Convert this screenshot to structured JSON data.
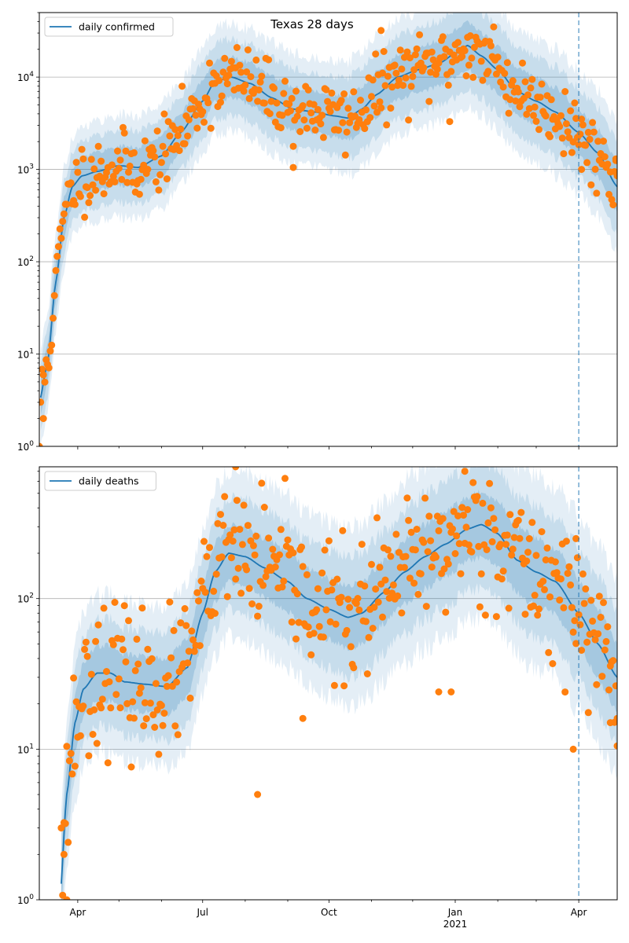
{
  "figure": {
    "title": "Texas 28 days"
  },
  "chart_data": [
    {
      "type": "line",
      "title": "Texas 28 days",
      "yscale": "log",
      "ylim": [
        1,
        50000
      ],
      "xlim": [
        "2020-03-04",
        "2021-04-29"
      ],
      "grid": "horizontal",
      "legend": "upper-left",
      "series_name": "daily confirmed",
      "line_color": "#1f77b4",
      "band_color": "#1f77b4",
      "point_color": "#ff7f0e",
      "vline": {
        "date": "2021-04-01",
        "color": "#1f77b4",
        "style": "dashed"
      },
      "ytick_labels": [
        "10^0",
        "10^1",
        "10^2",
        "10^3",
        "10^4"
      ],
      "xtick_labels": [],
      "median_curve": [
        [
          "2020-03-04",
          3
        ],
        [
          "2020-03-10",
          8
        ],
        [
          "2020-03-16",
          60
        ],
        [
          "2020-03-22",
          300
        ],
        [
          "2020-03-28",
          650
        ],
        [
          "2020-04-04",
          850
        ],
        [
          "2020-04-15",
          950
        ],
        [
          "2020-05-01",
          1100
        ],
        [
          "2020-05-15",
          1050
        ],
        [
          "2020-06-01",
          1400
        ],
        [
          "2020-06-15",
          2500
        ],
        [
          "2020-07-01",
          5500
        ],
        [
          "2020-07-10",
          9000
        ],
        [
          "2020-07-22",
          10000
        ],
        [
          "2020-08-05",
          8500
        ],
        [
          "2020-08-20",
          6000
        ],
        [
          "2020-09-05",
          4500
        ],
        [
          "2020-09-20",
          4200
        ],
        [
          "2020-10-05",
          3800
        ],
        [
          "2020-10-15",
          3600
        ],
        [
          "2020-10-25",
          4500
        ],
        [
          "2020-11-05",
          6500
        ],
        [
          "2020-11-20",
          10000
        ],
        [
          "2020-12-05",
          12000
        ],
        [
          "2020-12-20",
          14000
        ],
        [
          "2021-01-01",
          18000
        ],
        [
          "2021-01-10",
          22000
        ],
        [
          "2021-01-20",
          17000
        ],
        [
          "2021-02-01",
          12000
        ],
        [
          "2021-02-15",
          7000
        ],
        [
          "2021-03-01",
          5500
        ],
        [
          "2021-03-15",
          4200
        ],
        [
          "2021-04-01",
          2500
        ],
        [
          "2021-04-15",
          1500
        ],
        [
          "2021-04-29",
          650
        ]
      ],
      "band_factors": [
        1.6,
        2.4,
        3.4
      ],
      "observations": {
        "seed": 11,
        "sigma": 0.18,
        "outliers": [
          [
            "2020-03-04",
            1
          ],
          [
            "2020-03-07",
            2
          ],
          [
            "2020-11-08",
            32000
          ],
          [
            "2021-01-29",
            35000
          ],
          [
            "2020-09-05",
            1050
          ],
          [
            "2020-12-28",
            3300
          ],
          [
            "2021-04-03",
            1000
          ],
          [
            "2021-04-28",
            1300
          ]
        ]
      }
    },
    {
      "type": "line",
      "yscale": "log",
      "ylim": [
        1,
        750
      ],
      "xlim": [
        "2020-03-04",
        "2021-04-29"
      ],
      "grid": "horizontal",
      "legend": "upper-left",
      "series_name": "daily deaths",
      "line_color": "#1f77b4",
      "band_color": "#1f77b4",
      "point_color": "#ff7f0e",
      "vline": {
        "date": "2021-04-01",
        "color": "#1f77b4",
        "style": "dashed"
      },
      "ytick_labels": [
        "10^0",
        "10^1",
        "10^2"
      ],
      "xtick_labels": [
        "Apr",
        "Jul",
        "Oct",
        "Jan",
        "Apr"
      ],
      "xtick_dates": [
        "2020-04-01",
        "2020-07-01",
        "2020-10-01",
        "2021-01-01",
        "2021-04-01"
      ],
      "year_label": "2021",
      "year_label_date": "2021-01-01",
      "median_curve": [
        [
          "2020-03-19",
          1
        ],
        [
          "2020-03-24",
          5
        ],
        [
          "2020-03-30",
          15
        ],
        [
          "2020-04-05",
          25
        ],
        [
          "2020-04-15",
          32
        ],
        [
          "2020-04-25",
          32
        ],
        [
          "2020-05-05",
          28
        ],
        [
          "2020-05-20",
          27
        ],
        [
          "2020-06-05",
          26
        ],
        [
          "2020-06-20",
          35
        ],
        [
          "2020-07-01",
          80
        ],
        [
          "2020-07-10",
          150
        ],
        [
          "2020-07-20",
          200
        ],
        [
          "2020-08-01",
          190
        ],
        [
          "2020-08-15",
          160
        ],
        [
          "2020-09-01",
          130
        ],
        [
          "2020-09-15",
          100
        ],
        [
          "2020-10-01",
          85
        ],
        [
          "2020-10-15",
          75
        ],
        [
          "2020-10-25",
          80
        ],
        [
          "2020-11-10",
          110
        ],
        [
          "2020-11-25",
          150
        ],
        [
          "2020-12-10",
          190
        ],
        [
          "2020-12-25",
          230
        ],
        [
          "2021-01-10",
          290
        ],
        [
          "2021-01-20",
          310
        ],
        [
          "2021-02-01",
          270
        ],
        [
          "2021-02-15",
          180
        ],
        [
          "2021-03-01",
          150
        ],
        [
          "2021-03-15",
          130
        ],
        [
          "2021-04-01",
          80
        ],
        [
          "2021-04-15",
          50
        ],
        [
          "2021-04-29",
          30
        ]
      ],
      "band_factors": [
        1.5,
        2.2,
        3.2
      ],
      "observations": {
        "seed": 23,
        "sigma": 0.22,
        "outliers": [
          [
            "2020-03-20",
            3
          ],
          [
            "2020-03-22",
            2
          ],
          [
            "2020-03-24",
            1
          ],
          [
            "2020-07-25",
            750
          ],
          [
            "2020-08-10",
            5
          ],
          [
            "2020-09-12",
            16
          ],
          [
            "2020-12-20",
            24
          ],
          [
            "2020-12-29",
            24
          ],
          [
            "2021-01-08",
            700
          ],
          [
            "2021-03-28",
            10
          ],
          [
            "2021-03-30",
            250
          ],
          [
            "2021-04-24",
            15
          ],
          [
            "2021-04-29",
            16
          ]
        ]
      }
    }
  ]
}
